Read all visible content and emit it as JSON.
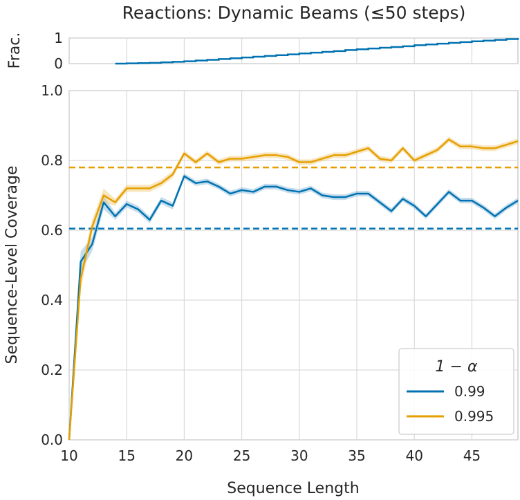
{
  "chart_data": {
    "title": "Reactions: Dynamic Beams (≤50 steps)",
    "top_panel": {
      "type": "line",
      "ylabel": "Frac.",
      "yticks": [
        0,
        1
      ],
      "ylim": [
        0,
        1
      ],
      "x": [
        14,
        15,
        16,
        17,
        18,
        19,
        20,
        21,
        22,
        23,
        24,
        25,
        26,
        27,
        28,
        29,
        30,
        31,
        32,
        33,
        34,
        35,
        36,
        37,
        38,
        39,
        40,
        41,
        42,
        43,
        44,
        45,
        46,
        47,
        48,
        49
      ],
      "values": [
        0.0,
        0.01,
        0.02,
        0.03,
        0.05,
        0.07,
        0.09,
        0.12,
        0.15,
        0.18,
        0.21,
        0.24,
        0.27,
        0.3,
        0.33,
        0.36,
        0.4,
        0.43,
        0.46,
        0.49,
        0.53,
        0.56,
        0.59,
        0.62,
        0.65,
        0.68,
        0.72,
        0.75,
        0.78,
        0.81,
        0.84,
        0.87,
        0.9,
        0.93,
        0.96,
        1.0
      ]
    },
    "main_panel": {
      "type": "line",
      "xlabel": "Sequence Length",
      "ylabel": "Sequence-Level Coverage",
      "xlim": [
        10,
        49
      ],
      "ylim": [
        0.0,
        1.0
      ],
      "xticks": [
        10,
        15,
        20,
        25,
        30,
        35,
        40,
        45
      ],
      "yticks": [
        "0.0",
        "0.2",
        "0.4",
        "0.6",
        "0.8",
        "1.0"
      ],
      "x": [
        10,
        11,
        12,
        13,
        14,
        15,
        16,
        17,
        18,
        19,
        20,
        21,
        22,
        23,
        24,
        25,
        26,
        27,
        28,
        29,
        30,
        31,
        32,
        33,
        34,
        35,
        36,
        37,
        38,
        39,
        40,
        41,
        42,
        43,
        44,
        45,
        46,
        47,
        48,
        49
      ],
      "series": [
        {
          "name": "0.99",
          "color": "#0072b2",
          "band_color": "#7fb3d5",
          "values": [
            0.0,
            0.51,
            0.56,
            0.68,
            0.64,
            0.675,
            0.66,
            0.63,
            0.685,
            0.67,
            0.755,
            0.735,
            0.74,
            0.725,
            0.705,
            0.715,
            0.71,
            0.725,
            0.725,
            0.715,
            0.71,
            0.72,
            0.7,
            0.695,
            0.695,
            0.705,
            0.705,
            0.68,
            0.655,
            0.69,
            0.67,
            0.64,
            0.675,
            0.71,
            0.685,
            0.685,
            0.665,
            0.64,
            0.665,
            0.685
          ],
          "band": [
            0.0,
            0.03,
            0.02,
            0.02,
            0.01,
            0.01,
            0.01,
            0.01,
            0.01,
            0.01,
            0.008,
            0.008,
            0.008,
            0.008,
            0.008,
            0.008,
            0.008,
            0.008,
            0.008,
            0.008,
            0.008,
            0.008,
            0.008,
            0.008,
            0.008,
            0.008,
            0.008,
            0.008,
            0.008,
            0.008,
            0.008,
            0.008,
            0.008,
            0.008,
            0.008,
            0.008,
            0.008,
            0.008,
            0.008,
            0.008
          ],
          "threshold": 0.605
        },
        {
          "name": "0.995",
          "color": "#e69f00",
          "band_color": "#f0c870",
          "values": [
            0.0,
            0.46,
            0.61,
            0.7,
            0.68,
            0.72,
            0.72,
            0.72,
            0.735,
            0.76,
            0.82,
            0.795,
            0.82,
            0.795,
            0.805,
            0.805,
            0.81,
            0.815,
            0.815,
            0.81,
            0.795,
            0.795,
            0.805,
            0.815,
            0.815,
            0.825,
            0.835,
            0.805,
            0.8,
            0.835,
            0.8,
            0.815,
            0.83,
            0.86,
            0.84,
            0.84,
            0.835,
            0.835,
            0.845,
            0.855
          ],
          "band": [
            0.0,
            0.03,
            0.02,
            0.02,
            0.01,
            0.01,
            0.01,
            0.01,
            0.01,
            0.01,
            0.008,
            0.008,
            0.008,
            0.008,
            0.008,
            0.008,
            0.008,
            0.008,
            0.008,
            0.008,
            0.008,
            0.008,
            0.008,
            0.008,
            0.008,
            0.008,
            0.008,
            0.008,
            0.008,
            0.008,
            0.008,
            0.008,
            0.008,
            0.008,
            0.008,
            0.008,
            0.008,
            0.008,
            0.008,
            0.008
          ],
          "threshold": 0.78
        }
      ],
      "legend": {
        "title": "1 − α",
        "position": "lower-right",
        "entries": [
          "0.99",
          "0.995"
        ]
      },
      "grid": true
    }
  }
}
